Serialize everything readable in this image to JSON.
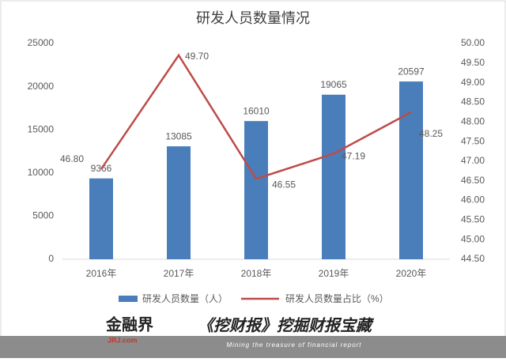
{
  "chart_data": {
    "type": "bar_line",
    "title": "研发人员数量情况",
    "categories": [
      "2016年",
      "2017年",
      "2018年",
      "2019年",
      "2020年"
    ],
    "series": [
      {
        "name": "研发人员数量（人）",
        "color": "#4a7ebb",
        "type": "bar",
        "values": [
          9366,
          13085,
          16010,
          19065,
          20597
        ]
      },
      {
        "name": "研发人员数量占比（%）",
        "color": "#be4b48",
        "type": "line",
        "axis": "y2",
        "values": [
          46.8,
          49.7,
          46.55,
          47.19,
          48.25
        ],
        "value_labels": [
          "46.80",
          "49.70",
          "46.55",
          "47.19",
          "48.25"
        ]
      }
    ],
    "ylim": [
      0,
      25000
    ],
    "yticks": [
      0,
      5000,
      10000,
      15000,
      20000,
      25000
    ],
    "y2lim": [
      44.5,
      50
    ],
    "y2ticks": [
      {
        "value": 44.5,
        "label": "44.50"
      },
      {
        "value": 45,
        "label": "45.00"
      },
      {
        "value": 45.5,
        "label": "45.50"
      },
      {
        "value": 46,
        "label": "46.00"
      },
      {
        "value": 46.5,
        "label": "46.50"
      },
      {
        "value": 47,
        "label": "47.00"
      },
      {
        "value": 47.5,
        "label": "47.50"
      },
      {
        "value": 48,
        "label": "48.00"
      },
      {
        "value": 48.5,
        "label": "48.50"
      },
      {
        "value": 49,
        "label": "49.00"
      },
      {
        "value": 49.5,
        "label": "49.50"
      },
      {
        "value": 50,
        "label": "50.00"
      }
    ],
    "grid": false,
    "legend": "bottom"
  },
  "footer": {
    "logo": "金融界",
    "logo_sub": "JRJ.com",
    "slogan": "《挖财报》挖掘财报宝藏",
    "tagline": "Mining the treasure of financial report"
  }
}
